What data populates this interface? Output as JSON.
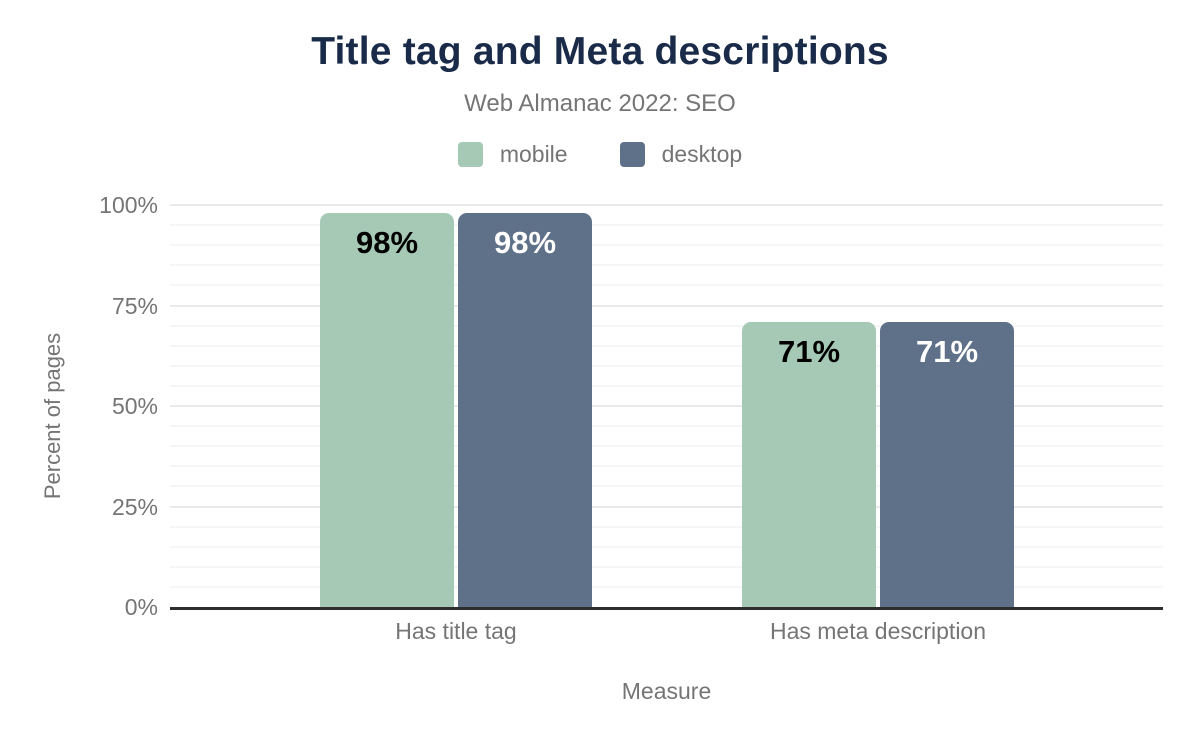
{
  "chart_data": {
    "type": "bar",
    "title": "Title tag and Meta descriptions",
    "subtitle": "Web Almanac 2022: SEO",
    "categories": [
      "Has title tag",
      "Has meta description"
    ],
    "series": [
      {
        "name": "mobile",
        "color": "#a6c9b6",
        "label_color": "#000000",
        "values": [
          98,
          71
        ],
        "value_labels": [
          "98%",
          "71%"
        ]
      },
      {
        "name": "desktop",
        "color": "#5f7189",
        "label_color": "#ffffff",
        "values": [
          98,
          71
        ],
        "value_labels": [
          "98%",
          "71%"
        ]
      }
    ],
    "xlabel": "Measure",
    "ylabel": "Percent of pages",
    "ylim": [
      0,
      100
    ],
    "yticks": [
      {
        "value": 0,
        "label": "0%"
      },
      {
        "value": 25,
        "label": "25%"
      },
      {
        "value": 50,
        "label": "50%"
      },
      {
        "value": 75,
        "label": "75%"
      },
      {
        "value": 100,
        "label": "100%"
      }
    ],
    "minor_grid_step": 5,
    "major_grid_step": 25,
    "grid": "horizontal",
    "legend_position": "top-center"
  },
  "colors": {
    "title_text": "#1a2b49",
    "muted_text": "#757575",
    "axis_line": "#2e2e2e",
    "major_grid": "#eaeaea",
    "minor_grid": "#f6f6f6",
    "mobile": "#a6c9b6",
    "desktop": "#5f7189",
    "background": "#ffffff"
  }
}
